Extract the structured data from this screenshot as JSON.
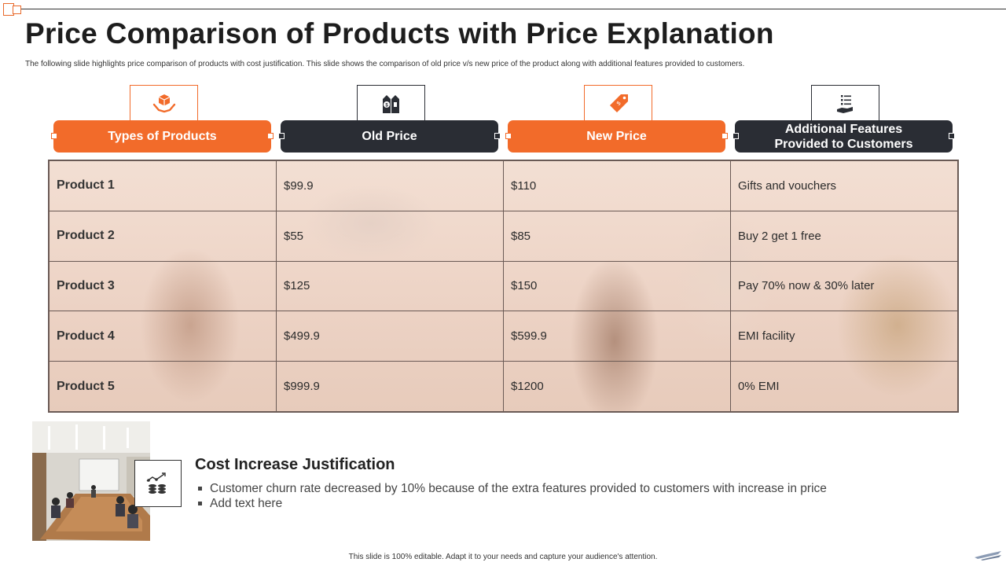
{
  "slide": {
    "title": "Price Comparison of Products with Price Explanation",
    "subtitle": "The following slide highlights price comparison of products with cost justification. This slide shows the comparison of old price v/s new price of the product along with additional features provided to customers."
  },
  "columns": [
    {
      "label": "Types of Products",
      "icon": "hand-box-icon",
      "color": "#f26b2a"
    },
    {
      "label": "Old Price",
      "icon": "price-tags-icon",
      "color": "#2a2d34"
    },
    {
      "label": "New Price",
      "icon": "price-tag-icon",
      "color": "#f26b2a"
    },
    {
      "label": "Additional Features Provided to Customers",
      "icon": "hand-list-icon",
      "color": "#2a2d34"
    }
  ],
  "rows": [
    {
      "product": "Product 1",
      "old_price": "$99.9",
      "new_price": "$110",
      "features": "Gifts and vouchers"
    },
    {
      "product": "Product 2",
      "old_price": "$55",
      "new_price": "$85",
      "features": "Buy 2 get 1 free"
    },
    {
      "product": "Product 3",
      "old_price": "$125",
      "new_price": "$150",
      "features": "Pay 70% now & 30% later"
    },
    {
      "product": "Product 4",
      "old_price": "$499.9",
      "new_price": "$599.9",
      "features": "EMI facility"
    },
    {
      "product": "Product 5",
      "old_price": "$999.9",
      "new_price": "$1200",
      "features": "0% EMI"
    }
  ],
  "justification": {
    "title": "Cost Increase Justification",
    "icon": "coins-growth-icon",
    "bullets": [
      "Customer churn rate decreased by 10% because of the extra features provided to customers with increase in price",
      "Add text here"
    ]
  },
  "footer": "This slide is 100% editable. Adapt it to your needs and capture your audience's attention."
}
